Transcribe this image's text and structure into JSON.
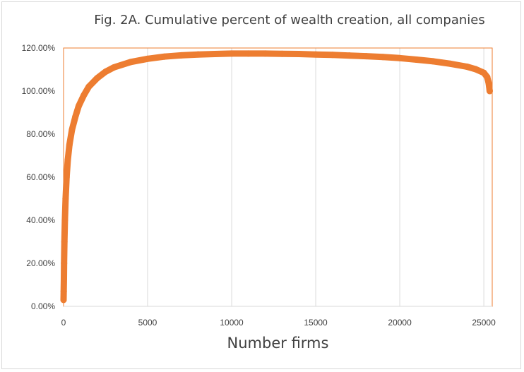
{
  "chart_data": {
    "type": "scatter",
    "title": "Fig. 2A. Cumulative percent of wealth creation, all companies",
    "xlabel": "Number firms",
    "ylabel": "",
    "xlim": [
      0,
      25500
    ],
    "ylim": [
      0,
      120
    ],
    "x_ticks": [
      "0",
      "5000",
      "10000",
      "15000",
      "20000",
      "25000"
    ],
    "x_tick_values": [
      0,
      5000,
      10000,
      15000,
      20000,
      25000
    ],
    "y_ticks": [
      "0.00%",
      "20.00%",
      "40.00%",
      "60.00%",
      "80.00%",
      "100.00%",
      "120.00%"
    ],
    "y_tick_values": [
      0,
      20,
      40,
      60,
      80,
      100,
      120
    ],
    "grid": "vertical",
    "legend": "none",
    "series": [
      {
        "color": "#ed7d31",
        "points": [
          [
            0,
            3
          ],
          [
            10,
            7
          ],
          [
            20,
            13
          ],
          [
            30,
            20
          ],
          [
            50,
            30
          ],
          [
            80,
            40
          ],
          [
            120,
            50
          ],
          [
            180,
            60
          ],
          [
            250,
            68
          ],
          [
            350,
            75
          ],
          [
            500,
            82
          ],
          [
            700,
            88
          ],
          [
            900,
            93
          ],
          [
            1200,
            98
          ],
          [
            1500,
            102
          ],
          [
            2000,
            106
          ],
          [
            2500,
            109
          ],
          [
            3000,
            111
          ],
          [
            4000,
            113.5
          ],
          [
            5000,
            115
          ],
          [
            6000,
            116
          ],
          [
            7000,
            116.6
          ],
          [
            8000,
            117
          ],
          [
            9000,
            117.2
          ],
          [
            10000,
            117.4
          ],
          [
            11000,
            117.4
          ],
          [
            12000,
            117.4
          ],
          [
            13000,
            117.3
          ],
          [
            14000,
            117.2
          ],
          [
            15000,
            117
          ],
          [
            16000,
            116.8
          ],
          [
            17000,
            116.5
          ],
          [
            18000,
            116.2
          ],
          [
            19000,
            115.8
          ],
          [
            20000,
            115.3
          ],
          [
            21000,
            114.6
          ],
          [
            22000,
            113.8
          ],
          [
            23000,
            112.7
          ],
          [
            24000,
            111.3
          ],
          [
            24500,
            110.2
          ],
          [
            25000,
            108.5
          ],
          [
            25200,
            106.5
          ],
          [
            25280,
            104
          ],
          [
            25320,
            102
          ],
          [
            25350,
            100
          ]
        ]
      }
    ],
    "plot_border_color": "#ed7d31"
  }
}
